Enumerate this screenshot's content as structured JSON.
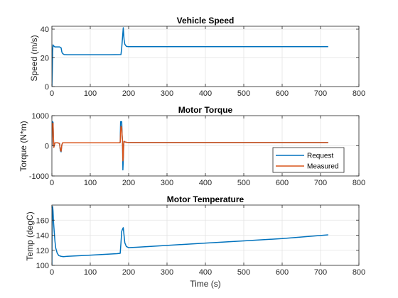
{
  "chart_data": [
    {
      "type": "line",
      "title": "Vehicle Speed",
      "xlabel": "",
      "ylabel": "Speed (m/s)",
      "xlim": [
        0,
        800
      ],
      "ylim": [
        0,
        42
      ],
      "xticks": [
        0,
        100,
        200,
        300,
        400,
        500,
        600,
        700,
        800
      ],
      "yticks": [
        0,
        20,
        40
      ],
      "grid": true,
      "series": [
        {
          "color": "#0072BD",
          "x": [
            0,
            1,
            2,
            3,
            4,
            5,
            6,
            8,
            12,
            20,
            24,
            26,
            28,
            32,
            40,
            60,
            100,
            150,
            180,
            182,
            184,
            186,
            188,
            190,
            194,
            200,
            300,
            400,
            500,
            600,
            720
          ],
          "y": [
            0,
            10,
            25,
            29,
            28.5,
            28.3,
            28,
            27.6,
            27.6,
            27.6,
            27,
            24,
            23,
            22.3,
            22.2,
            22.2,
            22.2,
            22.2,
            22.3,
            27,
            34,
            41,
            33,
            29.5,
            28,
            27.8,
            27.8,
            27.8,
            27.8,
            27.8,
            27.8
          ]
        }
      ]
    },
    {
      "type": "line",
      "title": "Motor Torque",
      "xlabel": "",
      "ylabel": "Torque (N*m)",
      "xlim": [
        0,
        800
      ],
      "ylim": [
        -1000,
        1000
      ],
      "xticks": [
        0,
        100,
        200,
        300,
        400,
        500,
        600,
        700,
        800
      ],
      "yticks": [
        -1000,
        0,
        1000
      ],
      "grid": true,
      "legend_position": "lower-right",
      "series": [
        {
          "name": "Request",
          "color": "#0072BD",
          "x": [
            0,
            0.5,
            1,
            2,
            3,
            4,
            5,
            6,
            8,
            10,
            15,
            20,
            22,
            24,
            26,
            28,
            30,
            40,
            100,
            175,
            178,
            179,
            182,
            183,
            184,
            185,
            186,
            187,
            188,
            190,
            195,
            200,
            300,
            500,
            720
          ],
          "y": [
            0,
            750,
            800,
            800,
            780,
            300,
            -50,
            0,
            100,
            100,
            100,
            80,
            -160,
            -200,
            30,
            100,
            100,
            100,
            100,
            100,
            110,
            800,
            800,
            350,
            150,
            -800,
            -500,
            20,
            150,
            130,
            115,
            110,
            110,
            110,
            110
          ]
        },
        {
          "name": "Measured",
          "color": "#D95319",
          "x": [
            0,
            1,
            2,
            3,
            4,
            5,
            6,
            8,
            10,
            15,
            20,
            22,
            24,
            26,
            28,
            30,
            40,
            100,
            175,
            178,
            179,
            180,
            182,
            183,
            184,
            185,
            186,
            187,
            188,
            190,
            195,
            200,
            300,
            500,
            720
          ],
          "y": [
            0,
            700,
            750,
            740,
            300,
            -50,
            0,
            100,
            100,
            100,
            80,
            -140,
            -180,
            30,
            100,
            100,
            100,
            100,
            100,
            110,
            450,
            650,
            600,
            350,
            150,
            -500,
            -400,
            20,
            150,
            130,
            115,
            110,
            110,
            110,
            110
          ]
        }
      ]
    },
    {
      "type": "line",
      "title": "Motor Temperature",
      "xlabel": "Time (s)",
      "ylabel": "Temp (degC)",
      "xlim": [
        0,
        800
      ],
      "ylim": [
        100,
        180
      ],
      "xticks": [
        0,
        100,
        200,
        300,
        400,
        500,
        600,
        700,
        800
      ],
      "yticks": [
        100,
        120,
        140,
        160
      ],
      "grid": true,
      "series": [
        {
          "color": "#0072BD",
          "x": [
            0,
            0.5,
            1,
            2,
            3,
            4,
            6,
            8,
            10,
            14,
            18,
            24,
            30,
            40,
            100,
            170,
            178,
            180,
            182,
            184,
            186,
            188,
            190,
            194,
            200,
            220,
            300,
            400,
            500,
            600,
            720
          ],
          "y": [
            100,
            150,
            175,
            178,
            172,
            160,
            145,
            132,
            123,
            116,
            113,
            112,
            111.5,
            112,
            113.5,
            115.5,
            116,
            130,
            145,
            148,
            150,
            140,
            130,
            125,
            123.5,
            124,
            126.5,
            129.5,
            132.5,
            135.5,
            140.5
          ]
        }
      ]
    }
  ]
}
